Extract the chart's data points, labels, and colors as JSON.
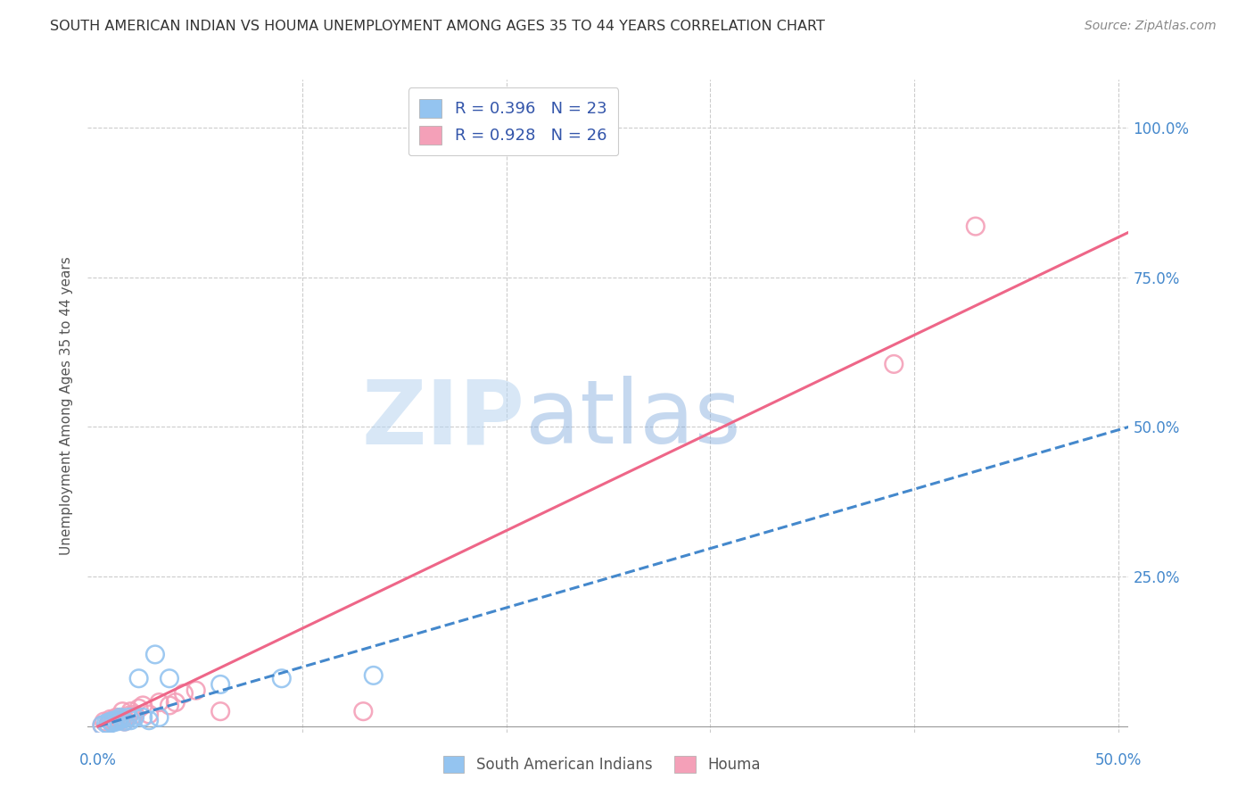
{
  "title": "SOUTH AMERICAN INDIAN VS HOUMA UNEMPLOYMENT AMONG AGES 35 TO 44 YEARS CORRELATION CHART",
  "source": "Source: ZipAtlas.com",
  "ylabel": "Unemployment Among Ages 35 to 44 years",
  "xlim": [
    -0.005,
    0.505
  ],
  "ylim": [
    -0.01,
    1.08
  ],
  "xticks": [
    0.0,
    0.1,
    0.2,
    0.3,
    0.4,
    0.5
  ],
  "xtick_labels": [
    "0.0%",
    "",
    "",
    "",
    "",
    "50.0%"
  ],
  "yticks": [
    0.0,
    0.25,
    0.5,
    0.75,
    1.0
  ],
  "ytick_labels_right": [
    "",
    "25.0%",
    "50.0%",
    "75.0%",
    "100.0%"
  ],
  "blue_R": 0.396,
  "blue_N": 23,
  "pink_R": 0.928,
  "pink_N": 26,
  "blue_color": "#94C4F0",
  "pink_color": "#F4A0B8",
  "blue_line_color": "#4488CC",
  "pink_line_color": "#EE6688",
  "background_color": "#ffffff",
  "grid_color": "#cccccc",
  "blue_scatter_x": [
    0.002,
    0.004,
    0.005,
    0.006,
    0.007,
    0.008,
    0.009,
    0.01,
    0.011,
    0.012,
    0.013,
    0.015,
    0.016,
    0.018,
    0.02,
    0.022,
    0.025,
    0.028,
    0.03,
    0.035,
    0.06,
    0.09,
    0.135
  ],
  "blue_scatter_y": [
    0.002,
    0.005,
    0.003,
    0.008,
    0.006,
    0.01,
    0.008,
    0.01,
    0.015,
    0.012,
    0.008,
    0.015,
    0.01,
    0.015,
    0.08,
    0.015,
    0.01,
    0.12,
    0.015,
    0.08,
    0.07,
    0.08,
    0.085
  ],
  "pink_scatter_x": [
    0.002,
    0.003,
    0.005,
    0.006,
    0.007,
    0.008,
    0.009,
    0.01,
    0.011,
    0.012,
    0.013,
    0.015,
    0.016,
    0.018,
    0.02,
    0.022,
    0.025,
    0.03,
    0.035,
    0.038,
    0.042,
    0.048,
    0.06,
    0.13,
    0.39,
    0.43
  ],
  "pink_scatter_y": [
    0.002,
    0.008,
    0.004,
    0.012,
    0.01,
    0.008,
    0.015,
    0.012,
    0.01,
    0.025,
    0.008,
    0.018,
    0.025,
    0.02,
    0.03,
    0.035,
    0.02,
    0.04,
    0.035,
    0.04,
    0.055,
    0.06,
    0.025,
    0.025,
    0.605,
    0.835
  ],
  "blue_trend_x": [
    0.0,
    0.505
  ],
  "blue_trend_y": [
    0.0,
    0.5
  ],
  "pink_trend_x": [
    0.0,
    0.505
  ],
  "pink_trend_y": [
    0.0,
    0.825
  ]
}
